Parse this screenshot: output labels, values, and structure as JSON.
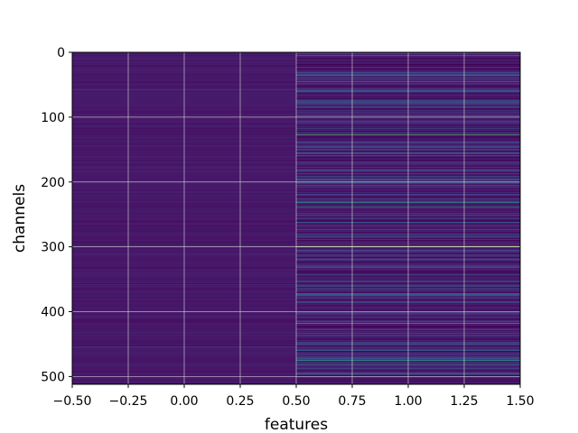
{
  "chart_data": {
    "type": "heatmap",
    "title": "",
    "xlabel": "features",
    "ylabel": "channels",
    "xlim": [
      -0.5,
      1.5
    ],
    "ylim": [
      512,
      0
    ],
    "y_inverted": true,
    "grid": true,
    "colormap": "viridis",
    "columns": [
      0,
      1
    ],
    "rows": 512,
    "x_ticks": [
      "−0.50",
      "−0.25",
      "0.00",
      "0.25",
      "0.50",
      "0.75",
      "1.00",
      "1.25",
      "1.50"
    ],
    "x_tick_values": [
      -0.5,
      -0.25,
      0.0,
      0.25,
      0.5,
      0.75,
      1.0,
      1.25,
      1.5
    ],
    "y_ticks": [
      "0",
      "100",
      "200",
      "300",
      "400",
      "500"
    ],
    "y_tick_values": [
      0,
      100,
      200,
      300,
      400,
      500
    ],
    "column_0_baseline": 0.05,
    "column_0_highlights": [
      {
        "channel": 58,
        "value": 0.25
      },
      {
        "channel": 200,
        "value": 0.35
      },
      {
        "channel": 300,
        "value": 0.3
      },
      {
        "channel": 455,
        "value": 0.2
      }
    ],
    "column_1_highlights": [
      {
        "channel": 5,
        "value": 0.45
      },
      {
        "channel": 36,
        "value": 0.5
      },
      {
        "channel": 45,
        "value": 0.45
      },
      {
        "channel": 60,
        "value": 0.55
      },
      {
        "channel": 78,
        "value": 0.5
      },
      {
        "channel": 98,
        "value": 0.4
      },
      {
        "channel": 127,
        "value": 0.7
      },
      {
        "channel": 150,
        "value": 0.45
      },
      {
        "channel": 155,
        "value": 0.4
      },
      {
        "channel": 232,
        "value": 0.55
      },
      {
        "channel": 238,
        "value": 0.5
      },
      {
        "channel": 262,
        "value": 0.35
      },
      {
        "channel": 285,
        "value": 0.4
      },
      {
        "channel": 300,
        "value": 1.0
      },
      {
        "channel": 320,
        "value": 0.4
      },
      {
        "channel": 372,
        "value": 0.4
      },
      {
        "channel": 385,
        "value": 0.45
      },
      {
        "channel": 418,
        "value": 0.6
      },
      {
        "channel": 460,
        "value": 0.4
      },
      {
        "channel": 475,
        "value": 0.6
      },
      {
        "channel": 496,
        "value": 0.45
      }
    ]
  }
}
